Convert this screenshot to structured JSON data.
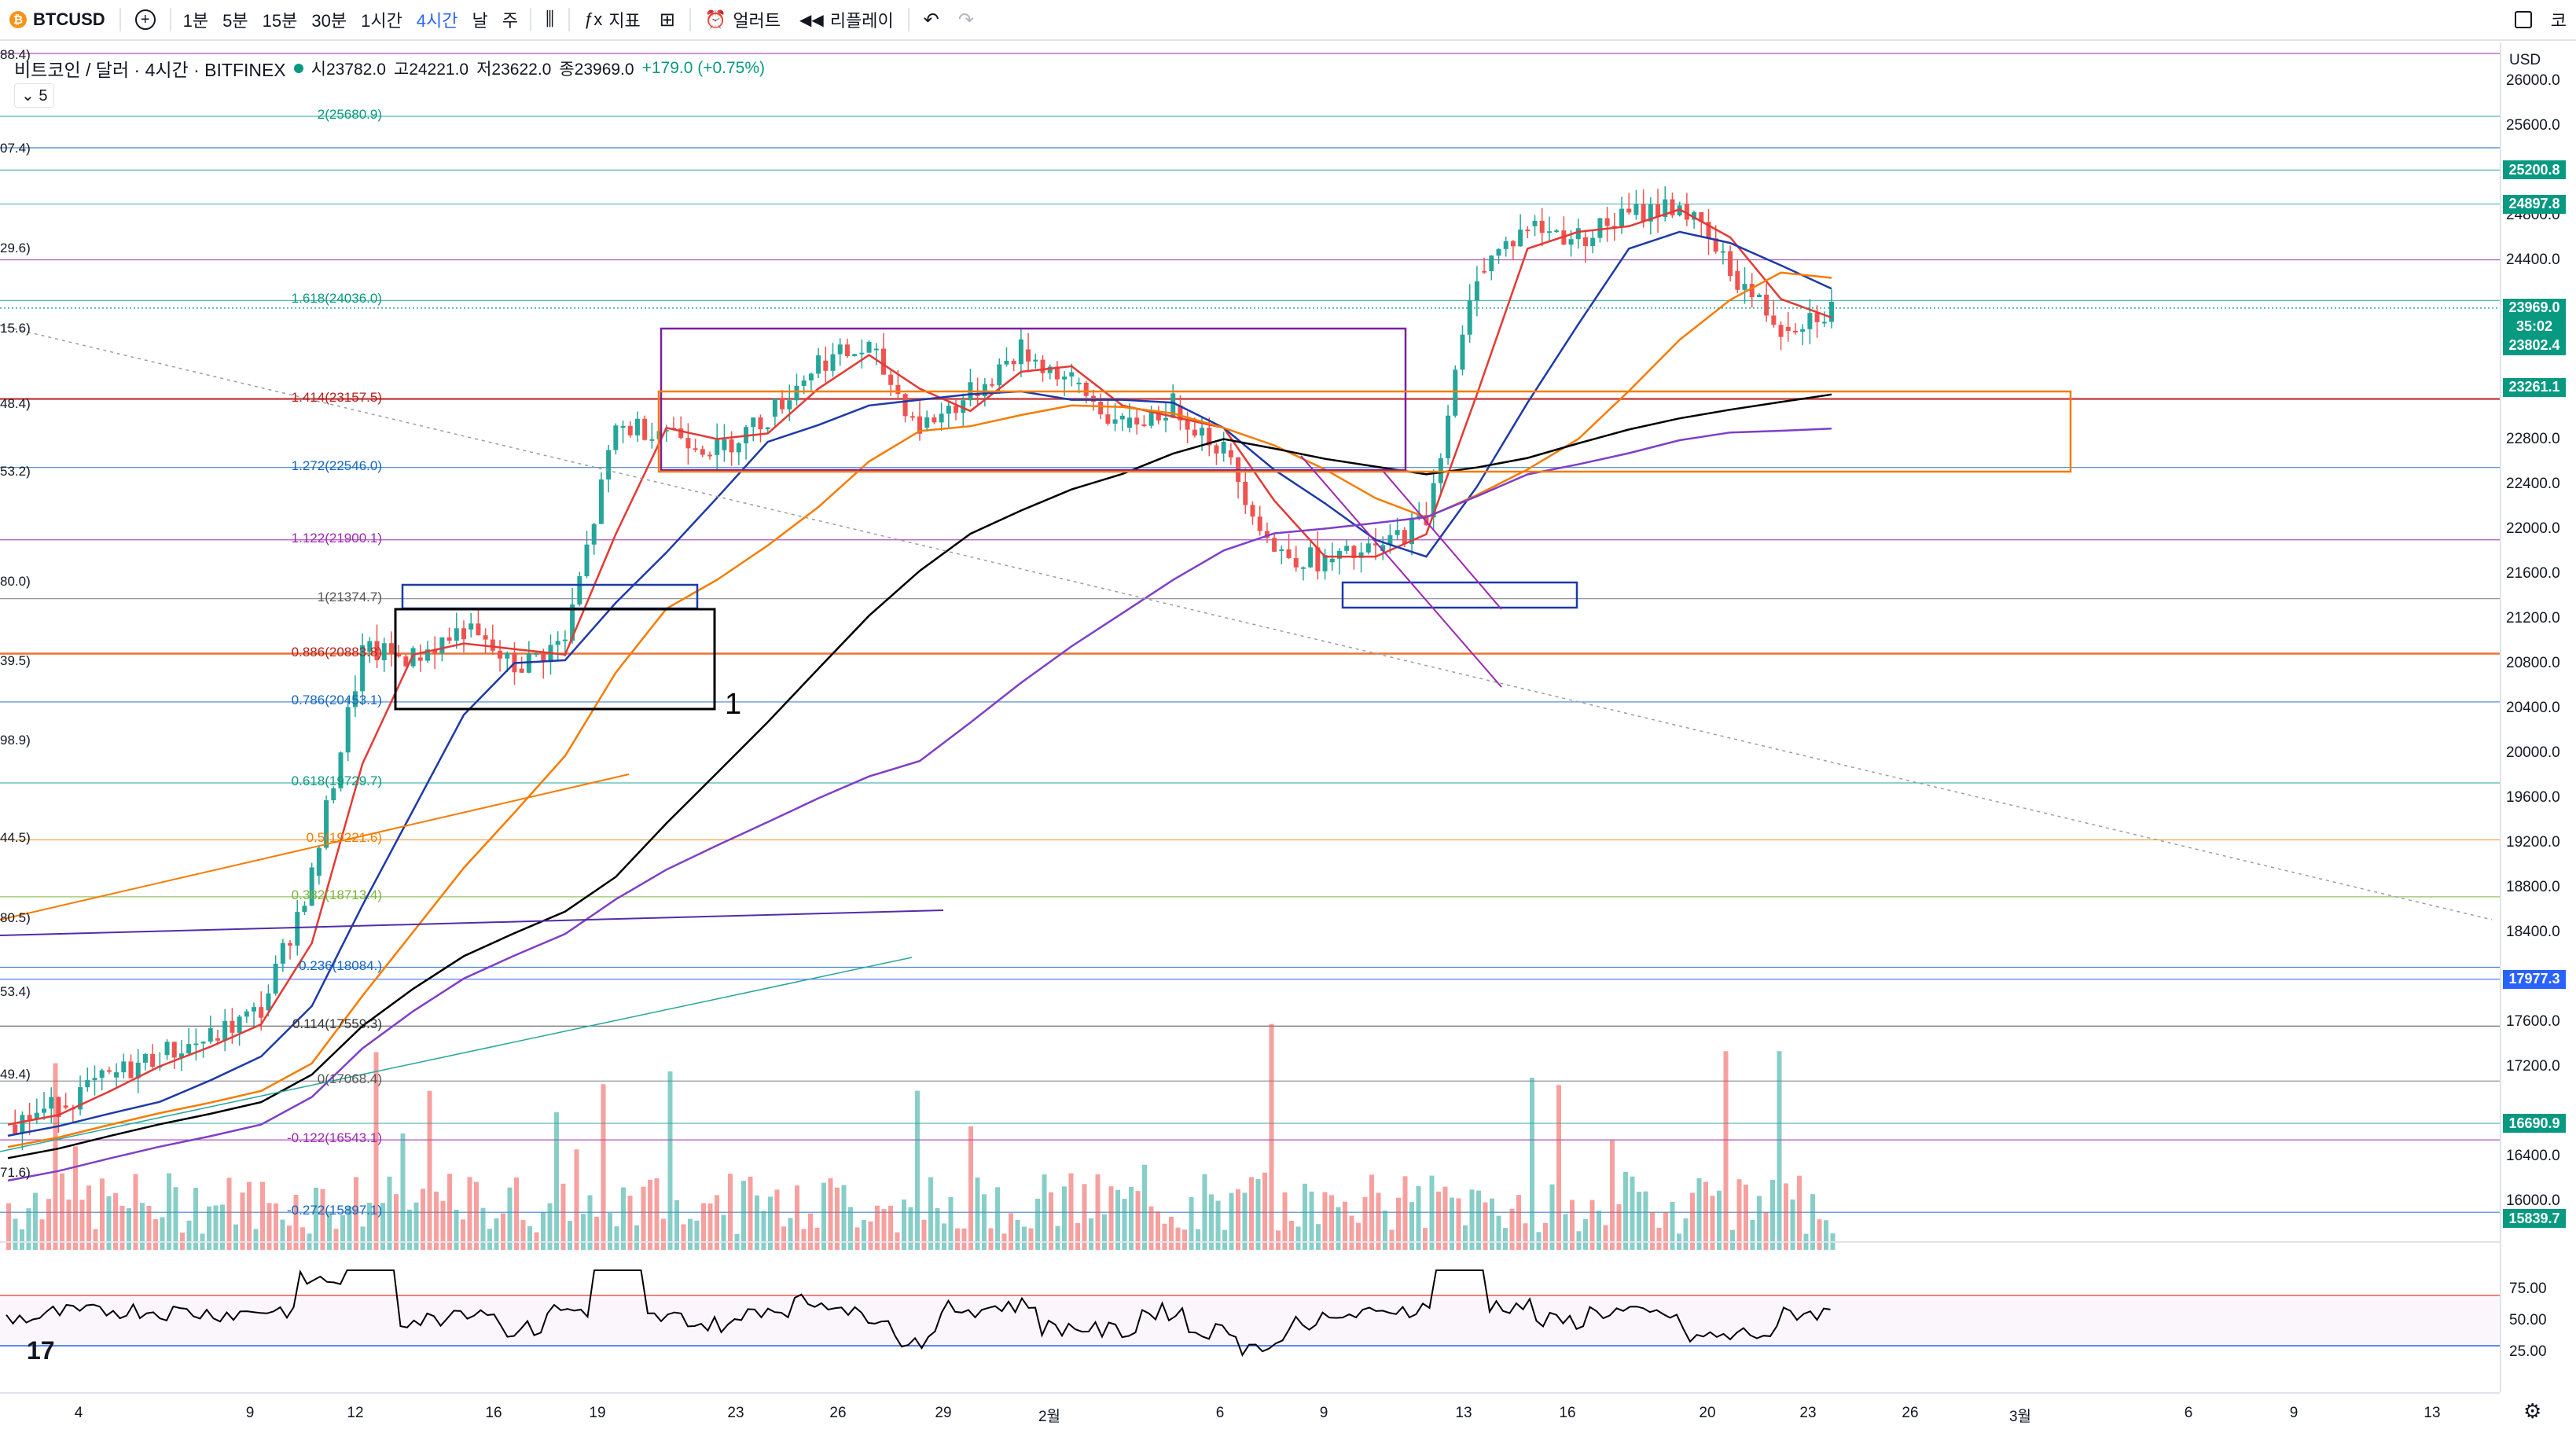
{
  "toolbar": {
    "symbol": "BTCUSD",
    "intervals": [
      "1분",
      "5분",
      "15분",
      "30분",
      "1시간",
      "4시간",
      "날",
      "주"
    ],
    "active_interval": "4시간",
    "indicators_label": "지표",
    "alerts_label": "얼러트",
    "replay_label": "리플레이",
    "right_partial": "코"
  },
  "legend": {
    "title": "비트코인 / 달러 · 4시간 · BITFINEX",
    "open": "시23782.0",
    "high": "고24221.0",
    "low": "저23622.0",
    "close": "종23969.0",
    "change": "+179.0 (+0.75%)",
    "indicator_count": "5"
  },
  "price_axis": {
    "currency": "USD",
    "ticks": [
      "26000.0",
      "25600.0",
      "24800.0",
      "24400.0",
      "23800.0",
      "22800.0",
      "22400.0",
      "22000.0",
      "21600.0",
      "21200.0",
      "20800.0",
      "20400.0",
      "20000.0",
      "19600.0",
      "19200.0",
      "18800.0",
      "18400.0",
      "17600.0",
      "17200.0",
      "16400.0",
      "16000.0"
    ],
    "badges": [
      {
        "text": "25200.8",
        "color": "#089981"
      },
      {
        "text": "24897.8",
        "color": "#089981"
      },
      {
        "text": "23969.0",
        "color": "#089981"
      },
      {
        "text": "35:02",
        "color": "#089981"
      },
      {
        "text": "23802.4",
        "color": "#089981"
      },
      {
        "text": "23261.1",
        "color": "#089981"
      },
      {
        "text": "17977.3",
        "color": "#2962ff"
      },
      {
        "text": "16690.9",
        "color": "#089981"
      },
      {
        "text": "15839.7",
        "color": "#089981"
      }
    ]
  },
  "time_axis": [
    "4",
    "9",
    "12",
    "16",
    "19",
    "23",
    "26",
    "29",
    "2월",
    "6",
    "9",
    "13",
    "16",
    "20",
    "23",
    "26",
    "3월",
    "6",
    "9",
    "13"
  ],
  "rsi_axis": [
    "75.00",
    "50.00",
    "25.00"
  ],
  "edge_labels": [
    "88.4)",
    "07.4)",
    "29.6)",
    "15.6)",
    "48.4)",
    "53.2)",
    "80.0)",
    "39.5)",
    "98.9)",
    "44.5)",
    "80.5)",
    "53.4)",
    "49.4)",
    "71.6)"
  ],
  "fib_labels": [
    {
      "text": "2(25680.9)",
      "color": "#089981"
    },
    {
      "text": "1.618(24036.0)",
      "color": "#089981"
    },
    {
      "text": "1.414(23157.5)",
      "color": "#b71c1c"
    },
    {
      "text": "1.272(22546.0)",
      "color": "#1565c0"
    },
    {
      "text": "1.122(21900.1)",
      "color": "#9c27b0"
    },
    {
      "text": "1(21374.7)",
      "color": "#555555"
    },
    {
      "text": "0.886(20883.8)",
      "color": "#b71c1c"
    },
    {
      "text": "0.786(20453.1)",
      "color": "#1565c0"
    },
    {
      "text": "0.618(19729.7)",
      "color": "#089981"
    },
    {
      "text": "0.5(19221.6)",
      "color": "#f57c00"
    },
    {
      "text": "0.382(18713.4)",
      "color": "#7cb342"
    },
    {
      "text": "0.236(18084.)",
      "color": "#1565c0"
    },
    {
      "text": "0.114(17559.3)",
      "color": "#333333"
    },
    {
      "text": "0(17068.4)",
      "color": "#555555"
    },
    {
      "text": "-0.122(16543.1)",
      "color": "#9c27b0"
    },
    {
      "text": "-0.272(15897.1)",
      "color": "#1565c0"
    }
  ],
  "annotation_text": "1",
  "chart_data": {
    "type": "candlestick",
    "instrument": "BTCUSD",
    "exchange": "BITFINEX",
    "interval": "4시간",
    "last_ohlc": {
      "open": 23782.0,
      "high": 24221.0,
      "low": 23622.0,
      "close": 23969.0,
      "change": 179.0,
      "change_pct": 0.75
    },
    "ylim": [
      15800,
      26200
    ],
    "price_path": [
      {
        "date": "1/3",
        "close": 16680
      },
      {
        "date": "1/5",
        "close": 16850
      },
      {
        "date": "1/8",
        "close": 17100
      },
      {
        "date": "1/10",
        "close": 17300
      },
      {
        "date": "1/11",
        "close": 17450
      },
      {
        "date": "1/12",
        "close": 17700
      },
      {
        "date": "1/13",
        "close": 18900
      },
      {
        "date": "1/14",
        "close": 20900
      },
      {
        "date": "1/16",
        "close": 20850
      },
      {
        "date": "1/17",
        "close": 21100
      },
      {
        "date": "1/19",
        "close": 20750
      },
      {
        "date": "1/20",
        "close": 21000
      },
      {
        "date": "1/21",
        "close": 22900
      },
      {
        "date": "1/23",
        "close": 22900
      },
      {
        "date": "1/25",
        "close": 22700
      },
      {
        "date": "1/27",
        "close": 23000
      },
      {
        "date": "1/29",
        "close": 23500
      },
      {
        "date": "1/30",
        "close": 23600
      },
      {
        "date": "1/31",
        "close": 22900
      },
      {
        "date": "2/2",
        "close": 23200
      },
      {
        "date": "2/3",
        "close": 23600
      },
      {
        "date": "2/5",
        "close": 23300
      },
      {
        "date": "2/7",
        "close": 22900
      },
      {
        "date": "2/8",
        "close": 23100
      },
      {
        "date": "2/9",
        "close": 22700
      },
      {
        "date": "2/10",
        "close": 21800
      },
      {
        "date": "2/12",
        "close": 21700
      },
      {
        "date": "2/14",
        "close": 21800
      },
      {
        "date": "2/15",
        "close": 22100
      },
      {
        "date": "2/16",
        "close": 24300
      },
      {
        "date": "2/17",
        "close": 24700
      },
      {
        "date": "2/18",
        "close": 24600
      },
      {
        "date": "2/20",
        "close": 24800
      },
      {
        "date": "2/21",
        "close": 24900
      },
      {
        "date": "2/22",
        "close": 24300
      },
      {
        "date": "2/23",
        "close": 23800
      },
      {
        "date": "2/24",
        "close": 23969
      }
    ],
    "horizontal_levels": [
      25680.9,
      25200.8,
      24897.8,
      24036.0,
      23157.5,
      22546.0,
      21900.1,
      21374.7,
      20883.8,
      20453.1,
      19729.7,
      19221.6,
      18713.4,
      18084.0,
      17977.3,
      17559.3,
      17068.4,
      16690.9,
      16543.1,
      15897.1
    ],
    "rsi": {
      "levels": [
        70,
        30
      ],
      "last": 45
    }
  }
}
